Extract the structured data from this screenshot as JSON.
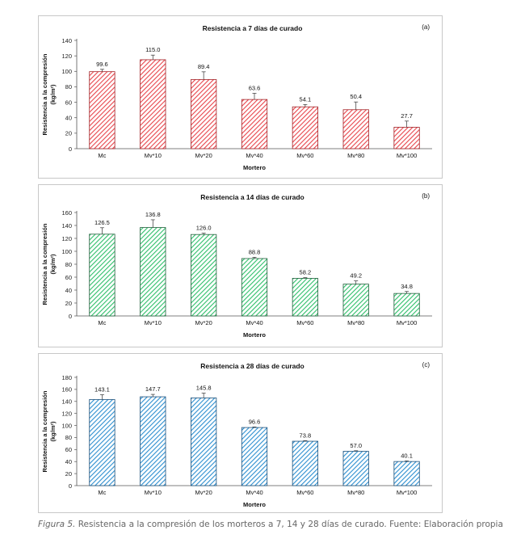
{
  "caption": {
    "figure_label": "Figura 5.",
    "text": "Resistencia a la compresión de los morteros a 7, 14 y 28 días de curado. Fuente: Elaboración propia"
  },
  "chart_data": [
    {
      "type": "bar",
      "panel": "(a)",
      "title": "Resistencia a 7 días de curado",
      "xlabel": "Mortero",
      "ylabel": "Resistencia a la compresión",
      "ylabel_unit": "(kg/m²)",
      "categories": [
        "Mc",
        "Mv*10",
        "Mv*20",
        "Mv*40",
        "Mv*60",
        "Mv*80",
        "Mv*100"
      ],
      "values": [
        99.6,
        115.0,
        89.4,
        63.6,
        54.1,
        50.4,
        27.7
      ],
      "labels": [
        "99.6",
        "115.0",
        "89.4",
        "63.6",
        "54.1",
        "50.4",
        "27.7"
      ],
      "errors": [
        3,
        6,
        10,
        8,
        3,
        10,
        8
      ],
      "ylim": [
        0,
        140
      ],
      "yticks": [
        0,
        20,
        40,
        60,
        80,
        100,
        120,
        140
      ],
      "fill_color": "#e8454b",
      "edge_color": "#a32025"
    },
    {
      "type": "bar",
      "panel": "(b)",
      "title": "Resistencia a 14 días de curado",
      "xlabel": "Mortero",
      "ylabel": "Resistencia a la compresión",
      "ylabel_unit": "(kg/m²)",
      "categories": [
        "Mc",
        "Mv*10",
        "Mv*20",
        "Mv*40",
        "Mv*60",
        "Mv*80",
        "Mv*100"
      ],
      "values": [
        126.5,
        136.8,
        126.0,
        88.8,
        58.2,
        49.2,
        34.8
      ],
      "labels": [
        "126.5",
        "136.8",
        "126.0",
        "88.8",
        "58.2",
        "49.2",
        "34.8"
      ],
      "errors": [
        10,
        12,
        2,
        2,
        1,
        5,
        3
      ],
      "ylim": [
        0,
        160
      ],
      "yticks": [
        0,
        20,
        40,
        60,
        80,
        100,
        120,
        140,
        160
      ],
      "fill_color": "#2fbf6a",
      "edge_color": "#1f5f3a"
    },
    {
      "type": "bar",
      "panel": "(c)",
      "title": "Resistencia a 28 días de curado",
      "xlabel": "Mortero",
      "ylabel": "Resistencia a la compresión",
      "ylabel_unit": "(kg/m²)",
      "categories": [
        "Mc",
        "Mv*10",
        "Mv*20",
        "Mv*40",
        "Mv*60",
        "Mv*80",
        "Mv*100"
      ],
      "values": [
        143.1,
        147.7,
        145.8,
        96.6,
        73.8,
        57.0,
        40.1
      ],
      "labels": [
        "143.1",
        "147.7",
        "145.8",
        "96.6",
        "73.8",
        "57.0",
        "40.1"
      ],
      "errors": [
        8,
        4,
        8,
        1,
        1,
        1,
        1
      ],
      "ylim": [
        0,
        180
      ],
      "yticks": [
        0,
        20,
        40,
        60,
        80,
        100,
        120,
        140,
        160,
        180
      ],
      "fill_color": "#2d8fd0",
      "edge_color": "#1a4f7a"
    }
  ]
}
